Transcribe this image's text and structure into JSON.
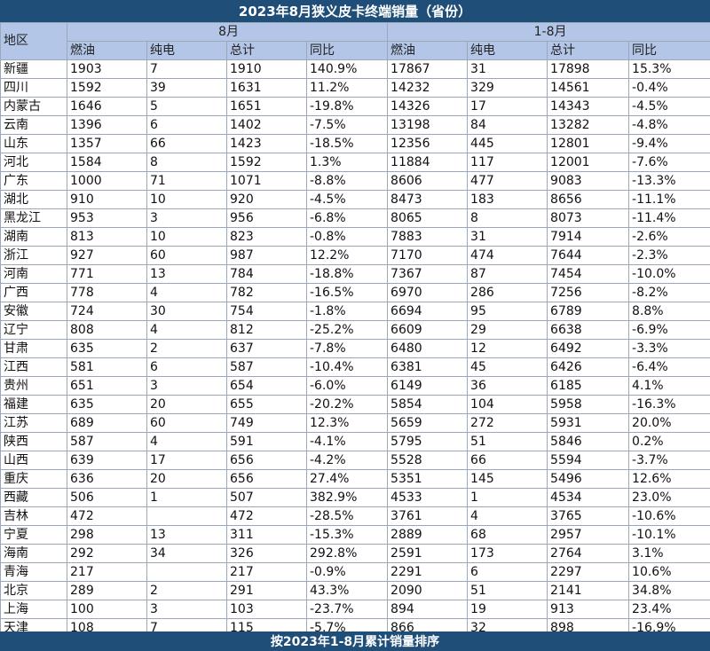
{
  "title": "2023年8月狭义皮卡终端销量（省份）",
  "headers": {
    "region": "地区",
    "group_aug": "8月",
    "group_ytd": "1-8月",
    "fuel": "燃油",
    "ev": "纯电",
    "total": "总计",
    "yoy": "同比"
  },
  "rows": [
    {
      "region": "新疆",
      "aug_fuel": "1903",
      "aug_ev": "7",
      "aug_total": "1910",
      "aug_yoy": "140.9%",
      "ytd_fuel": "17867",
      "ytd_ev": "31",
      "ytd_total": "17898",
      "ytd_yoy": "15.3%"
    },
    {
      "region": "四川",
      "aug_fuel": "1592",
      "aug_ev": "39",
      "aug_total": "1631",
      "aug_yoy": "11.2%",
      "ytd_fuel": "14232",
      "ytd_ev": "329",
      "ytd_total": "14561",
      "ytd_yoy": "-0.4%"
    },
    {
      "region": "内蒙古",
      "aug_fuel": "1646",
      "aug_ev": "5",
      "aug_total": "1651",
      "aug_yoy": "-19.8%",
      "ytd_fuel": "14326",
      "ytd_ev": "17",
      "ytd_total": "14343",
      "ytd_yoy": "-4.5%"
    },
    {
      "region": "云南",
      "aug_fuel": "1396",
      "aug_ev": "6",
      "aug_total": "1402",
      "aug_yoy": "-7.5%",
      "ytd_fuel": "13198",
      "ytd_ev": "84",
      "ytd_total": "13282",
      "ytd_yoy": "-4.8%"
    },
    {
      "region": "山东",
      "aug_fuel": "1357",
      "aug_ev": "66",
      "aug_total": "1423",
      "aug_yoy": "-18.5%",
      "ytd_fuel": "12356",
      "ytd_ev": "445",
      "ytd_total": "12801",
      "ytd_yoy": "-9.4%"
    },
    {
      "region": "河北",
      "aug_fuel": "1584",
      "aug_ev": "8",
      "aug_total": "1592",
      "aug_yoy": "1.3%",
      "ytd_fuel": "11884",
      "ytd_ev": "117",
      "ytd_total": "12001",
      "ytd_yoy": "-7.6%"
    },
    {
      "region": "广东",
      "aug_fuel": "1000",
      "aug_ev": "71",
      "aug_total": "1071",
      "aug_yoy": "-8.8%",
      "ytd_fuel": "8606",
      "ytd_ev": "477",
      "ytd_total": "9083",
      "ytd_yoy": "-13.3%"
    },
    {
      "region": "湖北",
      "aug_fuel": "910",
      "aug_ev": "10",
      "aug_total": "920",
      "aug_yoy": "-4.5%",
      "ytd_fuel": "8473",
      "ytd_ev": "183",
      "ytd_total": "8656",
      "ytd_yoy": "-11.1%"
    },
    {
      "region": "黑龙江",
      "aug_fuel": "953",
      "aug_ev": "3",
      "aug_total": "956",
      "aug_yoy": "-6.8%",
      "ytd_fuel": "8065",
      "ytd_ev": "8",
      "ytd_total": "8073",
      "ytd_yoy": "-11.4%"
    },
    {
      "region": "湖南",
      "aug_fuel": "813",
      "aug_ev": "10",
      "aug_total": "823",
      "aug_yoy": "-0.8%",
      "ytd_fuel": "7883",
      "ytd_ev": "31",
      "ytd_total": "7914",
      "ytd_yoy": "-2.6%"
    },
    {
      "region": "浙江",
      "aug_fuel": "927",
      "aug_ev": "60",
      "aug_total": "987",
      "aug_yoy": "12.2%",
      "ytd_fuel": "7170",
      "ytd_ev": "474",
      "ytd_total": "7644",
      "ytd_yoy": "-2.3%"
    },
    {
      "region": "河南",
      "aug_fuel": "771",
      "aug_ev": "13",
      "aug_total": "784",
      "aug_yoy": "-18.8%",
      "ytd_fuel": "7367",
      "ytd_ev": "87",
      "ytd_total": "7454",
      "ytd_yoy": "-10.0%"
    },
    {
      "region": "广西",
      "aug_fuel": "778",
      "aug_ev": "4",
      "aug_total": "782",
      "aug_yoy": "-16.5%",
      "ytd_fuel": "6970",
      "ytd_ev": "286",
      "ytd_total": "7256",
      "ytd_yoy": "-8.2%"
    },
    {
      "region": "安徽",
      "aug_fuel": "724",
      "aug_ev": "30",
      "aug_total": "754",
      "aug_yoy": "-1.8%",
      "ytd_fuel": "6694",
      "ytd_ev": "95",
      "ytd_total": "6789",
      "ytd_yoy": "8.8%"
    },
    {
      "region": "辽宁",
      "aug_fuel": "808",
      "aug_ev": "4",
      "aug_total": "812",
      "aug_yoy": "-25.2%",
      "ytd_fuel": "6609",
      "ytd_ev": "29",
      "ytd_total": "6638",
      "ytd_yoy": "-6.9%"
    },
    {
      "region": "甘肃",
      "aug_fuel": "635",
      "aug_ev": "2",
      "aug_total": "637",
      "aug_yoy": "-7.8%",
      "ytd_fuel": "6480",
      "ytd_ev": "12",
      "ytd_total": "6492",
      "ytd_yoy": "-3.3%"
    },
    {
      "region": "江西",
      "aug_fuel": "581",
      "aug_ev": "6",
      "aug_total": "587",
      "aug_yoy": "-10.4%",
      "ytd_fuel": "6381",
      "ytd_ev": "45",
      "ytd_total": "6426",
      "ytd_yoy": "-6.4%"
    },
    {
      "region": "贵州",
      "aug_fuel": "651",
      "aug_ev": "3",
      "aug_total": "654",
      "aug_yoy": "-6.0%",
      "ytd_fuel": "6149",
      "ytd_ev": "36",
      "ytd_total": "6185",
      "ytd_yoy": "4.1%"
    },
    {
      "region": "福建",
      "aug_fuel": "635",
      "aug_ev": "20",
      "aug_total": "655",
      "aug_yoy": "-20.2%",
      "ytd_fuel": "5854",
      "ytd_ev": "104",
      "ytd_total": "5958",
      "ytd_yoy": "-16.3%"
    },
    {
      "region": "江苏",
      "aug_fuel": "689",
      "aug_ev": "60",
      "aug_total": "749",
      "aug_yoy": "12.3%",
      "ytd_fuel": "5659",
      "ytd_ev": "272",
      "ytd_total": "5931",
      "ytd_yoy": "20.0%"
    },
    {
      "region": "陕西",
      "aug_fuel": "587",
      "aug_ev": "4",
      "aug_total": "591",
      "aug_yoy": "-4.1%",
      "ytd_fuel": "5795",
      "ytd_ev": "51",
      "ytd_total": "5846",
      "ytd_yoy": "0.2%"
    },
    {
      "region": "山西",
      "aug_fuel": "639",
      "aug_ev": "17",
      "aug_total": "656",
      "aug_yoy": "-4.2%",
      "ytd_fuel": "5528",
      "ytd_ev": "66",
      "ytd_total": "5594",
      "ytd_yoy": "-3.7%"
    },
    {
      "region": "重庆",
      "aug_fuel": "636",
      "aug_ev": "20",
      "aug_total": "656",
      "aug_yoy": "27.4%",
      "ytd_fuel": "5351",
      "ytd_ev": "145",
      "ytd_total": "5496",
      "ytd_yoy": "12.6%"
    },
    {
      "region": "西藏",
      "aug_fuel": "506",
      "aug_ev": "1",
      "aug_total": "507",
      "aug_yoy": "382.9%",
      "ytd_fuel": "4533",
      "ytd_ev": "1",
      "ytd_total": "4534",
      "ytd_yoy": "23.0%"
    },
    {
      "region": "吉林",
      "aug_fuel": "472",
      "aug_ev": "",
      "aug_total": "472",
      "aug_yoy": "-28.5%",
      "ytd_fuel": "3761",
      "ytd_ev": "4",
      "ytd_total": "3765",
      "ytd_yoy": "-10.6%"
    },
    {
      "region": "宁夏",
      "aug_fuel": "298",
      "aug_ev": "13",
      "aug_total": "311",
      "aug_yoy": "-15.3%",
      "ytd_fuel": "2889",
      "ytd_ev": "68",
      "ytd_total": "2957",
      "ytd_yoy": "-10.1%"
    },
    {
      "region": "海南",
      "aug_fuel": "292",
      "aug_ev": "34",
      "aug_total": "326",
      "aug_yoy": "292.8%",
      "ytd_fuel": "2591",
      "ytd_ev": "173",
      "ytd_total": "2764",
      "ytd_yoy": "3.1%"
    },
    {
      "region": "青海",
      "aug_fuel": "217",
      "aug_ev": "",
      "aug_total": "217",
      "aug_yoy": "-0.9%",
      "ytd_fuel": "2291",
      "ytd_ev": "6",
      "ytd_total": "2297",
      "ytd_yoy": "10.6%"
    },
    {
      "region": "北京",
      "aug_fuel": "289",
      "aug_ev": "2",
      "aug_total": "291",
      "aug_yoy": "43.3%",
      "ytd_fuel": "2090",
      "ytd_ev": "51",
      "ytd_total": "2141",
      "ytd_yoy": "34.8%"
    },
    {
      "region": "上海",
      "aug_fuel": "100",
      "aug_ev": "3",
      "aug_total": "103",
      "aug_yoy": "-23.7%",
      "ytd_fuel": "894",
      "ytd_ev": "19",
      "ytd_total": "913",
      "ytd_yoy": "23.4%"
    },
    {
      "region": "天津",
      "aug_fuel": "108",
      "aug_ev": "7",
      "aug_total": "115",
      "aug_yoy": "-5.7%",
      "ytd_fuel": "866",
      "ytd_ev": "32",
      "ytd_total": "898",
      "ytd_yoy": "-16.9%"
    }
  ],
  "footer": "按2023年1-8月累计销量排序",
  "colors": {
    "header_dark": "#1f4e79",
    "header_light": "#b4c6e7",
    "positive": "#2e8b1e",
    "negative": "#d62828"
  }
}
